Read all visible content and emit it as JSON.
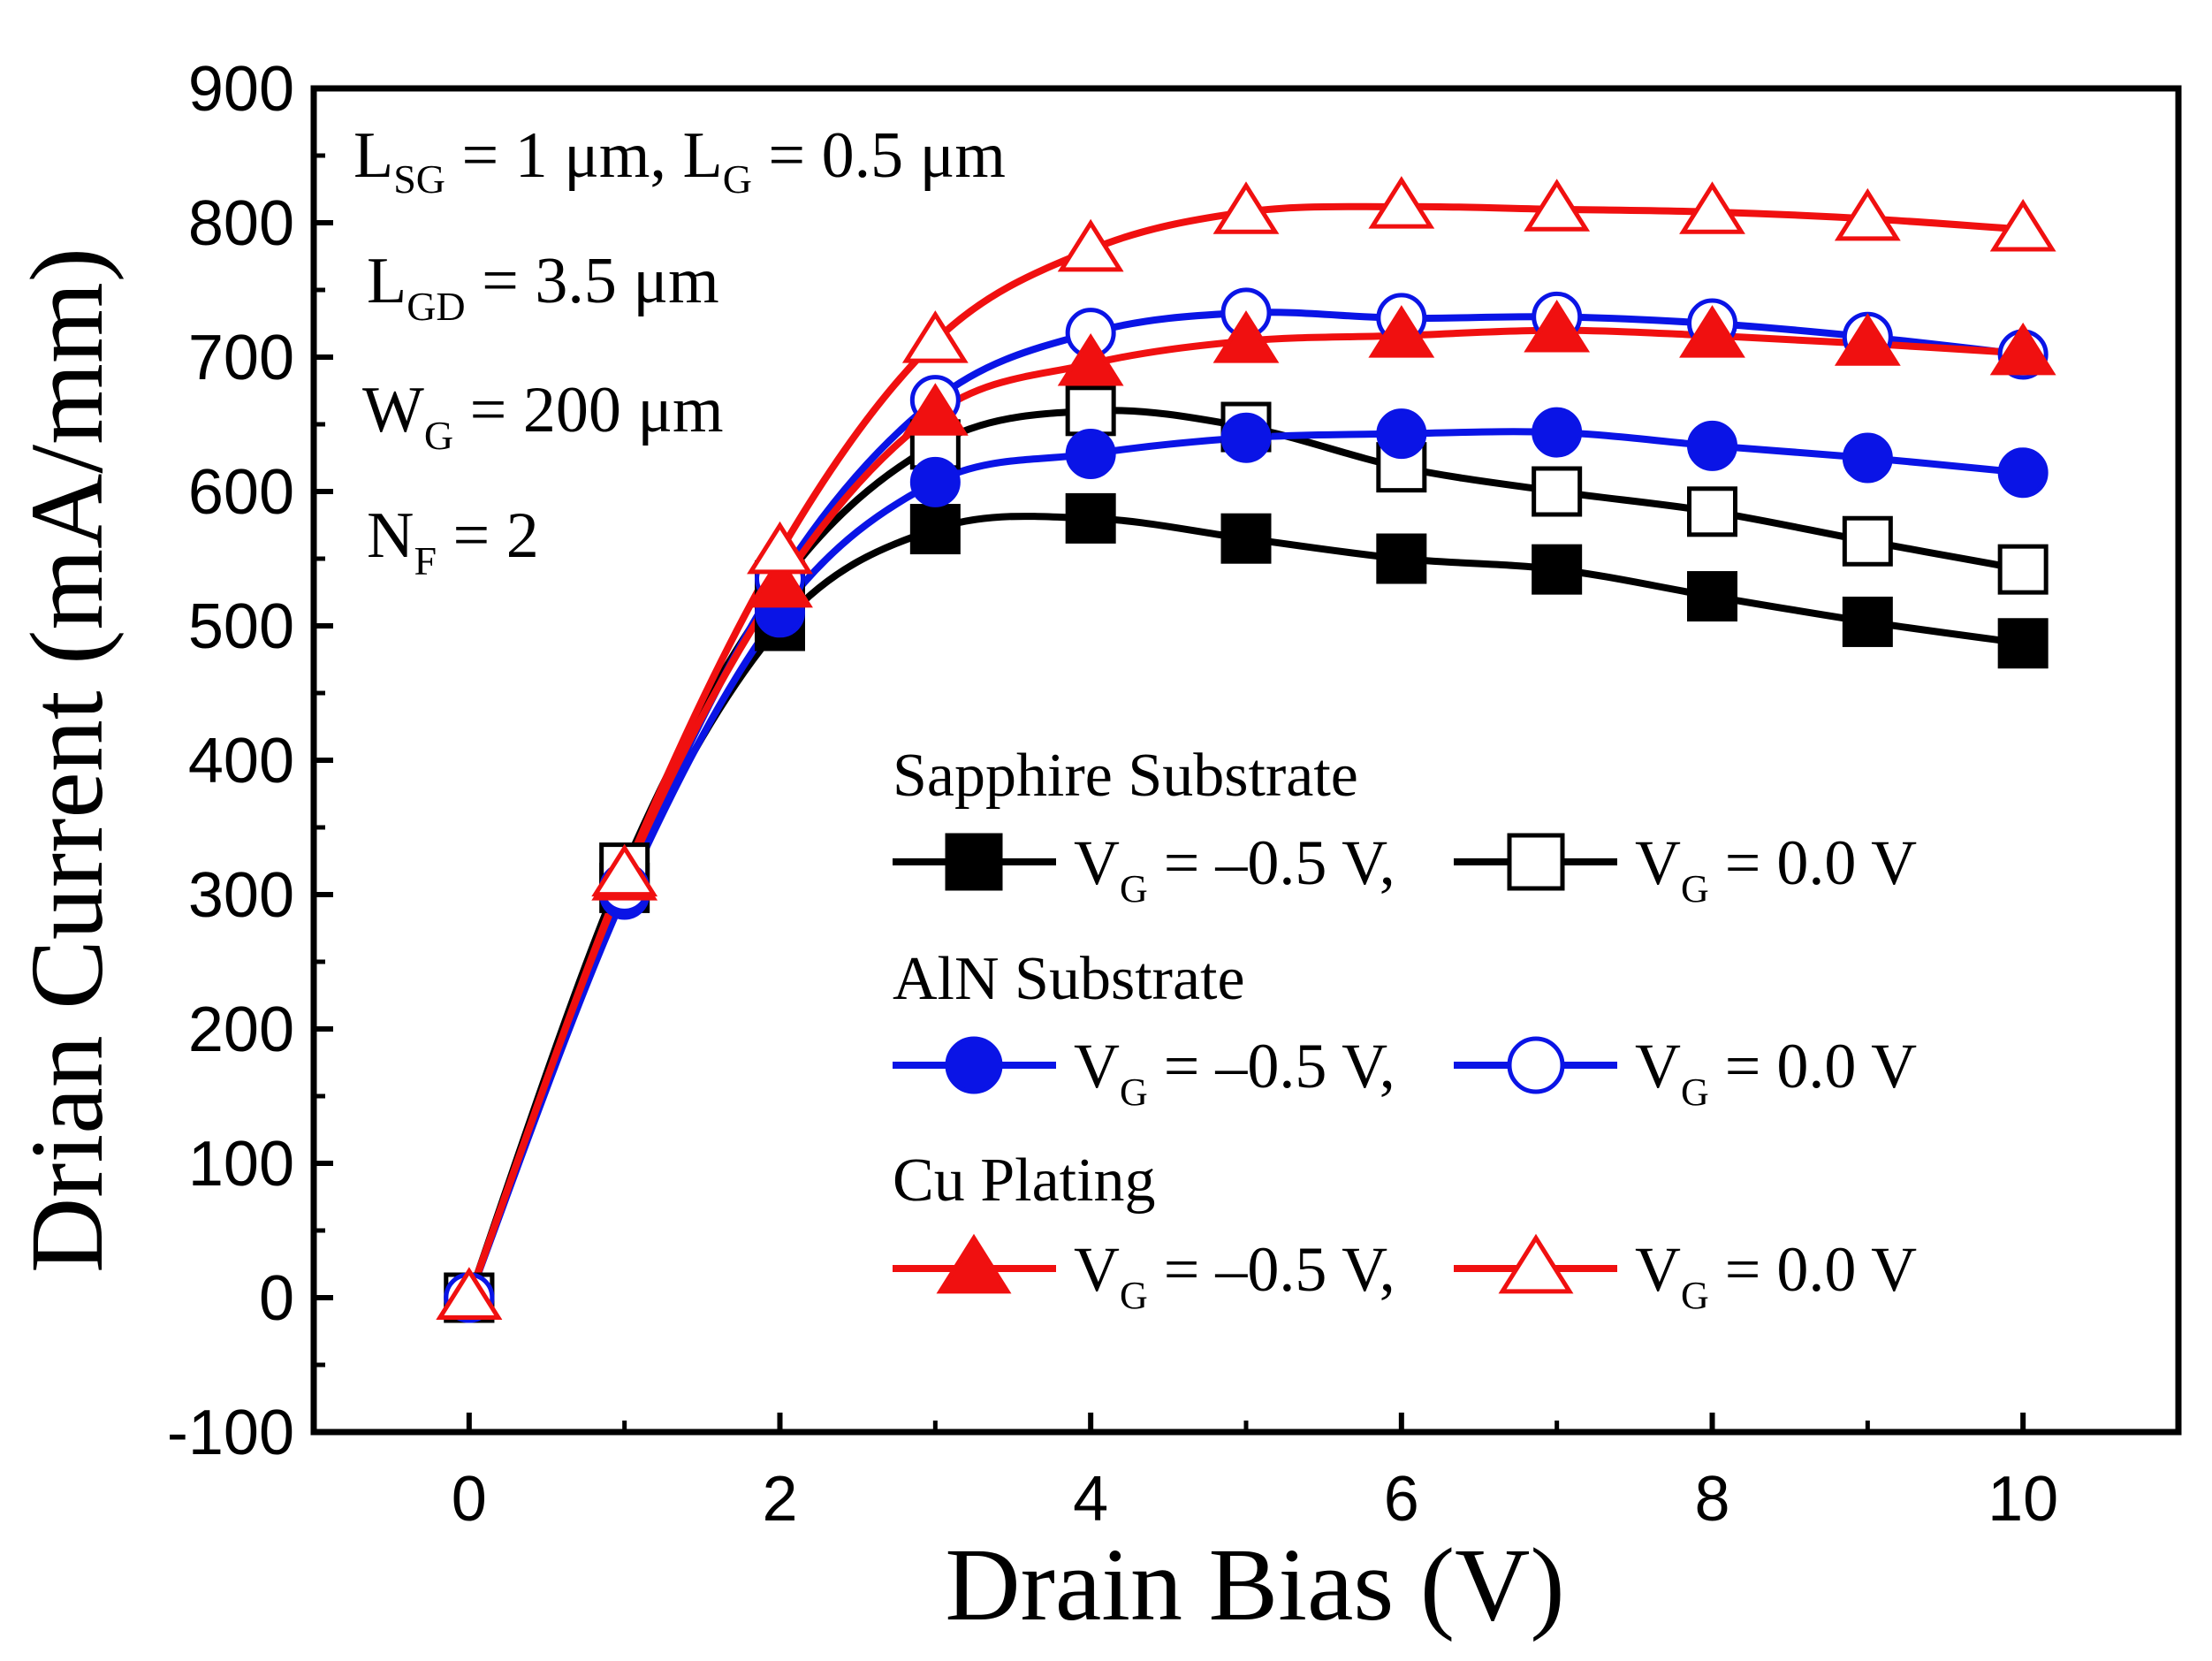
{
  "chart_data": {
    "type": "line",
    "title": "",
    "xlabel": "Drain Bias (V)",
    "ylabel": "Drian Current (mA/mm)",
    "xlim": [
      -1,
      11
    ],
    "ylim": [
      -100,
      900
    ],
    "xticks": [
      0,
      2,
      4,
      6,
      8,
      10
    ],
    "yticks": [
      -100,
      0,
      100,
      200,
      300,
      400,
      500,
      600,
      700,
      800,
      900
    ],
    "x": [
      0,
      1,
      2,
      3,
      4,
      5,
      6,
      7,
      8,
      9,
      10
    ],
    "series": [
      {
        "group": "Sapphire Substrate",
        "name": "VG = –0.5 V",
        "color": "#000000",
        "marker": "square",
        "filled": true,
        "values": [
          0,
          305,
          500,
          572,
          580,
          565,
          550,
          542,
          522,
          503,
          487
        ]
      },
      {
        "group": "Sapphire Substrate",
        "name": "VG = 0.0 V",
        "color": "#000000",
        "marker": "square",
        "filled": false,
        "values": [
          0,
          320,
          530,
          635,
          660,
          648,
          618,
          600,
          585,
          563,
          542
        ]
      },
      {
        "group": "AlN Substrate",
        "name": "VG = –0.5 V",
        "color": "#0a14e6",
        "marker": "circle",
        "filled": true,
        "values": [
          0,
          300,
          510,
          607,
          628,
          640,
          643,
          644,
          634,
          625,
          614
        ]
      },
      {
        "group": "AlN Substrate",
        "name": "VG = 0.0 V",
        "color": "#0a14e6",
        "marker": "circle",
        "filled": false,
        "values": [
          0,
          305,
          535,
          668,
          718,
          733,
          729,
          730,
          725,
          715,
          702
        ]
      },
      {
        "group": "Cu Plating",
        "name": "VG = –0.5 V",
        "color": "#f01010",
        "marker": "triangle",
        "filled": true,
        "values": [
          0,
          312,
          530,
          658,
          695,
          712,
          716,
          720,
          716,
          710,
          703
        ]
      },
      {
        "group": "Cu Plating",
        "name": "VG = 0.0 V",
        "color": "#f01010",
        "marker": "triangle",
        "filled": false,
        "values": [
          0,
          315,
          555,
          712,
          780,
          808,
          812,
          810,
          808,
          803,
          795
        ]
      }
    ],
    "annotations": {
      "line1_a_main": "L",
      "line1_a_sub": "SG",
      "line1_a_rest": " = 1 μm, L",
      "line1_b_sub": "G",
      "line1_b_rest": " = 0.5 μm",
      "line2_main": "L",
      "line2_sub": "GD",
      "line2_rest": " = 3.5 μm",
      "line3_main": "W",
      "line3_sub": "G",
      "line3_rest": " = 200 μm",
      "line4_main": "N",
      "line4_sub": "F",
      "line4_rest": " = 2"
    },
    "legend": {
      "position": "bottom-right",
      "groups": [
        "Sapphire Substrate",
        "AlN Substrate",
        "Cu Plating"
      ],
      "label_neg_main": "V",
      "label_neg_sub": "G",
      "label_neg_rest": " = –0.5 V,",
      "label_zero_main": "V",
      "label_zero_sub": "G",
      "label_zero_rest": " = 0.0 V"
    }
  }
}
